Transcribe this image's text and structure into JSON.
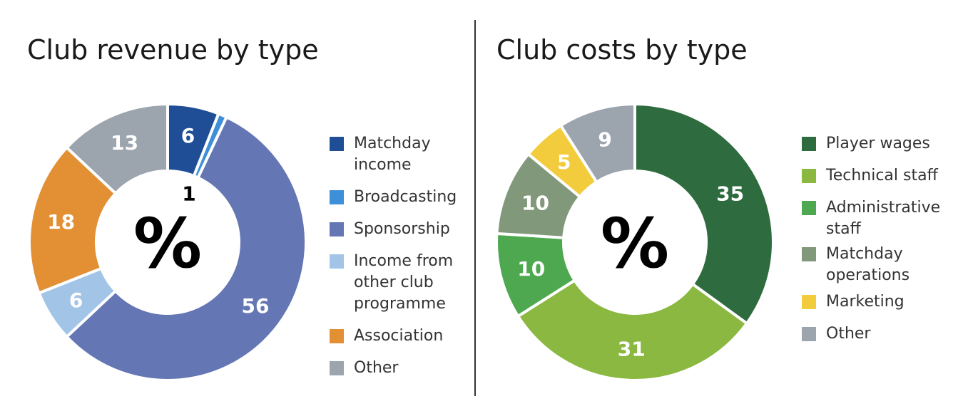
{
  "chart_data": [
    {
      "type": "pie",
      "title": "Club revenue by type",
      "center_label": "%",
      "categories": [
        "Matchday income",
        "Broadcasting",
        "Sponsorship",
        "Income from other club programme",
        "Association",
        "Other"
      ],
      "legend_labels": [
        [
          "Matchday",
          "income"
        ],
        [
          "Broadcasting"
        ],
        [
          "Sponsorship"
        ],
        [
          "Income from",
          "other club",
          "programme"
        ],
        [
          "Association"
        ],
        [
          "Other"
        ]
      ],
      "values": [
        6,
        1,
        56,
        6,
        18,
        13
      ],
      "data_labels": [
        "6",
        "1",
        "56",
        "6",
        "18",
        "13"
      ],
      "colors": [
        "#1f4e96",
        "#3d8fd8",
        "#6476b3",
        "#a2c4e6",
        "#e38f34",
        "#9ca4ae"
      ],
      "label_colors": [
        "#ffffff",
        "#000000",
        "#ffffff",
        "#ffffff",
        "#ffffff",
        "#ffffff"
      ],
      "legend_position": "right"
    },
    {
      "type": "pie",
      "title": "Club costs by type",
      "center_label": "%",
      "categories": [
        "Player wages",
        "Technical staff",
        "Administrative staff",
        "Matchday operations",
        "Marketing",
        "Other"
      ],
      "legend_labels": [
        [
          "Player wages"
        ],
        [
          "Technical staff"
        ],
        [
          "Administrative",
          "staff"
        ],
        [
          "Matchday",
          "operations"
        ],
        [
          "Marketing"
        ],
        [
          "Other"
        ]
      ],
      "values": [
        35,
        31,
        10,
        10,
        5,
        9
      ],
      "data_labels": [
        "35",
        "31",
        "10",
        "10",
        "5",
        "9"
      ],
      "colors": [
        "#2e6b3e",
        "#8ab840",
        "#4ea84f",
        "#81987a",
        "#f3cc3e",
        "#9ca4ae"
      ],
      "label_colors": [
        "#ffffff",
        "#ffffff",
        "#ffffff",
        "#ffffff",
        "#ffffff",
        "#ffffff"
      ],
      "legend_position": "right"
    }
  ]
}
